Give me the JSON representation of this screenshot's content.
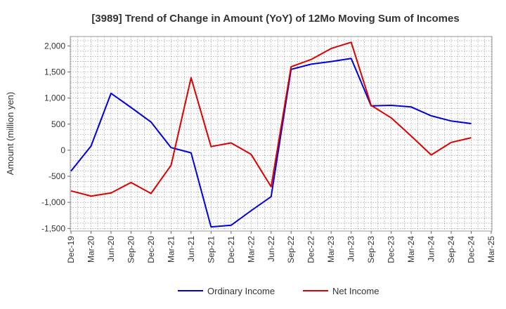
{
  "chart_data": {
    "type": "line",
    "title": "[3989]  Trend of Change in Amount (YoY) of 12Mo Moving Sum of Incomes",
    "ylabel": "Amount (million yen)",
    "xlabel": "",
    "ylim": [
      -1550,
      2180
    ],
    "yticks": [
      -1500,
      -1000,
      -500,
      0,
      500,
      1000,
      1500,
      2000
    ],
    "ytick_labels": [
      "-1,500",
      "-1,000",
      "-500",
      "0",
      "500",
      "1,000",
      "1,500",
      "2,000"
    ],
    "categories": [
      "Dec-19",
      "Mar-20",
      "Jun-20",
      "Sep-20",
      "Dec-20",
      "Mar-21",
      "Jun-21",
      "Sep-21",
      "Dec-21",
      "Mar-22",
      "Jun-22",
      "Sep-22",
      "Dec-22",
      "Mar-23",
      "Jun-23",
      "Sep-23",
      "Dec-23",
      "Mar-24",
      "Jun-24",
      "Sep-24",
      "Dec-24",
      "Mar-25"
    ],
    "grid": true,
    "legend_position": "bottom",
    "series": [
      {
        "name": "Ordinary Income",
        "color": "#0000dd",
        "values": [
          -400,
          80,
          1090,
          820,
          540,
          50,
          -50,
          -1470,
          -1440,
          -1160,
          -890,
          1550,
          1650,
          1700,
          1760,
          850,
          860,
          830,
          660,
          560,
          510,
          null
        ]
      },
      {
        "name": "Net Income",
        "color": "#dd0000",
        "values": [
          -780,
          -880,
          -820,
          -620,
          -830,
          -290,
          1390,
          70,
          140,
          -80,
          -700,
          1600,
          1740,
          1950,
          2070,
          860,
          620,
          270,
          -90,
          150,
          240,
          null
        ]
      }
    ]
  }
}
